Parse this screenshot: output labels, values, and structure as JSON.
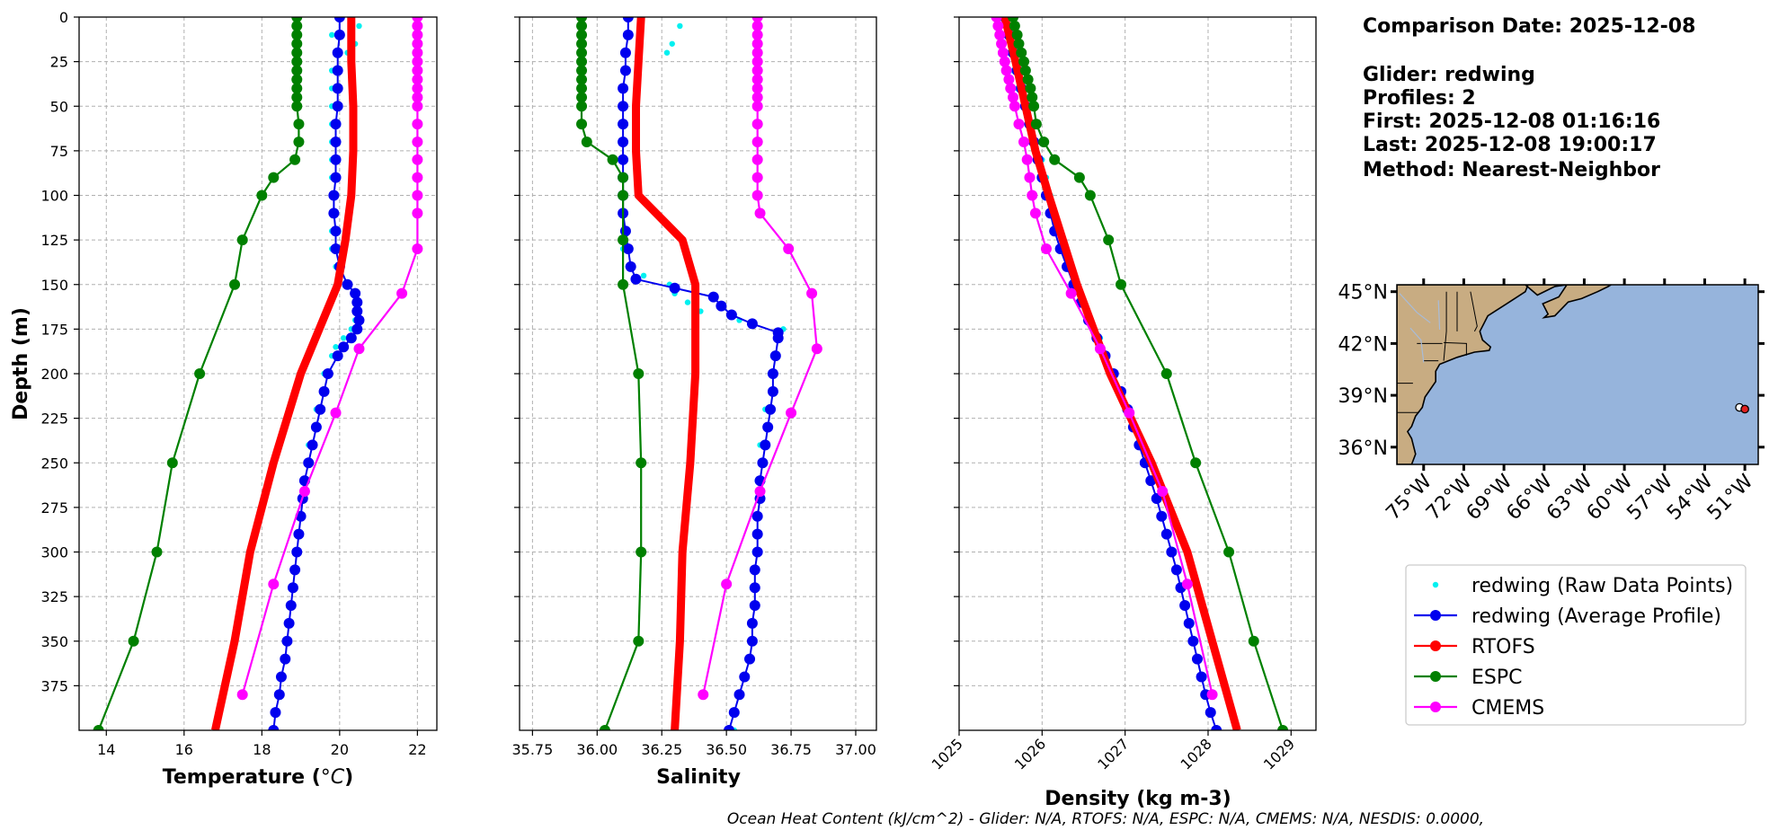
{
  "info": {
    "comparison_date": "Comparison Date: 2025-12-08",
    "glider": "Glider: redwing",
    "profiles": "Profiles: 2",
    "first": "First: 2025-12-08 01:16:16",
    "last": "Last: 2025-12-08 19:00:17",
    "method": "Method: Nearest-Neighbor"
  },
  "footer": "Ocean Heat Content (kJ/cm^2) - Glider: N/A,  RTOFS: N/A,  ESPC: N/A,  CMEMS: N/A,  NESDIS: 0.0000,",
  "colors": {
    "raw": "#00f0f0",
    "avg": "#0000ee",
    "rtofs": "#ff0000",
    "espc": "#008000",
    "cmems": "#ff00ff",
    "land": "#c8ac82",
    "ocean": "#96b4dc",
    "grid": "#b0b0b0"
  },
  "legend": [
    {
      "key": "raw",
      "label": "redwing (Raw Data Points)",
      "style": "dots"
    },
    {
      "key": "avg",
      "label": "redwing (Average Profile)",
      "style": "line-marker"
    },
    {
      "key": "rtofs",
      "label": "RTOFS",
      "style": "line-marker"
    },
    {
      "key": "espc",
      "label": "ESPC",
      "style": "line-marker"
    },
    {
      "key": "cmems",
      "label": "CMEMS",
      "style": "line-marker"
    }
  ],
  "map": {
    "lat_labels": [
      "45°N",
      "42°N",
      "39°N",
      "36°N"
    ],
    "lon_labels": [
      "75°W",
      "72°W",
      "69°W",
      "66°W",
      "63°W",
      "60°W",
      "57°W",
      "54°W",
      "51°W"
    ],
    "lat_values": [
      45,
      42,
      39,
      36
    ],
    "lon_values": [
      -75,
      -72,
      -69,
      -66,
      -63,
      -60,
      -57,
      -54,
      -51
    ],
    "extent": {
      "lon": [
        -77,
        -50
      ],
      "lat": [
        35,
        45.4
      ]
    },
    "glider_points": [
      {
        "lon": -51.4,
        "lat": 38.3
      },
      {
        "lon": -51.0,
        "lat": 38.2
      }
    ]
  },
  "chart_data": [
    {
      "type": "line",
      "xlabel": "Temperature (°C)",
      "ylabel": "Depth (m)",
      "xlim": [
        13.3,
        22.5
      ],
      "ylim": [
        400,
        0
      ],
      "xticks": [
        14,
        16,
        18,
        20,
        22
      ],
      "yticks": [
        0,
        25,
        50,
        75,
        100,
        125,
        150,
        175,
        200,
        225,
        250,
        275,
        300,
        325,
        350,
        375
      ],
      "grid": true,
      "series": [
        {
          "key": "raw",
          "name": "redwing (Raw Data Points)",
          "depth": [
            0,
            5,
            10,
            15,
            20,
            30,
            40,
            50,
            60,
            70,
            80,
            90,
            100,
            110,
            120,
            130,
            140,
            145,
            150,
            155,
            160,
            165,
            170,
            175,
            180,
            185,
            190,
            200,
            220,
            240,
            260,
            280,
            300,
            320,
            340,
            360,
            380,
            400
          ],
          "values": [
            20.3,
            20.5,
            19.8,
            20.4,
            20.2,
            19.8,
            19.8,
            19.8,
            19.8,
            19.8,
            19.8,
            19.8,
            19.8,
            19.8,
            19.8,
            19.8,
            19.9,
            20.0,
            20.2,
            20.4,
            20.5,
            20.5,
            20.4,
            20.3,
            20.1,
            19.9,
            19.8,
            19.6,
            19.4,
            19.2,
            19.1,
            19.0,
            18.9,
            18.8,
            18.7,
            18.6,
            18.5,
            18.3
          ]
        },
        {
          "key": "avg",
          "name": "redwing (Average Profile)",
          "depth": [
            0,
            10,
            20,
            30,
            40,
            50,
            60,
            70,
            80,
            90,
            100,
            110,
            120,
            130,
            140,
            150,
            155,
            160,
            165,
            170,
            175,
            180,
            185,
            190,
            200,
            210,
            220,
            230,
            240,
            250,
            260,
            270,
            280,
            290,
            300,
            310,
            320,
            330,
            340,
            350,
            360,
            370,
            380,
            390,
            400
          ],
          "values": [
            20.0,
            20.0,
            19.95,
            19.95,
            19.95,
            19.95,
            19.9,
            19.9,
            19.9,
            19.9,
            19.85,
            19.85,
            19.9,
            19.9,
            20.0,
            20.2,
            20.4,
            20.45,
            20.45,
            20.5,
            20.45,
            20.3,
            20.1,
            19.95,
            19.7,
            19.6,
            19.5,
            19.4,
            19.3,
            19.2,
            19.1,
            19.05,
            19.0,
            18.95,
            18.9,
            18.85,
            18.8,
            18.75,
            18.7,
            18.65,
            18.6,
            18.5,
            18.45,
            18.35,
            18.3
          ]
        },
        {
          "key": "rtofs",
          "name": "RTOFS",
          "depth": [
            0,
            25,
            50,
            75,
            100,
            125,
            150,
            200,
            250,
            300,
            350,
            400
          ],
          "values": [
            20.3,
            20.3,
            20.35,
            20.35,
            20.3,
            20.15,
            19.95,
            19.0,
            18.3,
            17.7,
            17.3,
            16.8
          ]
        },
        {
          "key": "espc",
          "name": "ESPC",
          "depth": [
            0,
            5,
            10,
            15,
            20,
            25,
            30,
            35,
            40,
            45,
            50,
            60,
            70,
            80,
            90,
            100,
            125,
            150,
            200,
            250,
            300,
            350,
            400
          ],
          "values": [
            18.9,
            18.9,
            18.9,
            18.9,
            18.9,
            18.9,
            18.9,
            18.9,
            18.9,
            18.9,
            18.9,
            18.95,
            18.95,
            18.85,
            18.3,
            18.0,
            17.5,
            17.3,
            16.4,
            15.7,
            15.3,
            14.7,
            13.8
          ]
        },
        {
          "key": "cmems",
          "name": "CMEMS",
          "depth": [
            0,
            5,
            10,
            15,
            20,
            25,
            30,
            35,
            40,
            45,
            50,
            60,
            70,
            80,
            90,
            100,
            110,
            130,
            155,
            186,
            222,
            266,
            318,
            380
          ],
          "values": [
            22.0,
            22.0,
            22.0,
            22.0,
            22.0,
            22.0,
            22.0,
            22.0,
            22.0,
            22.0,
            22.0,
            22.0,
            22.0,
            22.0,
            22.0,
            22.0,
            22.0,
            22.0,
            21.6,
            20.5,
            19.9,
            19.1,
            18.3,
            17.5
          ]
        }
      ]
    },
    {
      "type": "line",
      "xlabel": "Salinity",
      "xlim": [
        35.7,
        37.08
      ],
      "ylim": [
        400,
        0
      ],
      "xticks": [
        35.75,
        36.0,
        36.25,
        36.5,
        36.75,
        37.0
      ],
      "grid": true,
      "series": [
        {
          "key": "raw",
          "name": "redwing (Raw Data Points)",
          "depth": [
            0,
            5,
            10,
            15,
            20,
            30,
            40,
            50,
            60,
            70,
            80,
            90,
            100,
            110,
            120,
            130,
            140,
            145,
            150,
            155,
            160,
            165,
            170,
            175,
            180,
            190,
            200,
            220,
            240,
            260,
            280,
            300,
            320,
            340,
            360,
            380,
            400
          ],
          "values": [
            36.12,
            36.32,
            36.12,
            36.29,
            36.27,
            36.1,
            36.1,
            36.1,
            36.09,
            36.09,
            36.09,
            36.09,
            36.09,
            36.1,
            36.1,
            36.1,
            36.12,
            36.18,
            36.28,
            36.3,
            36.35,
            36.4,
            36.55,
            36.72,
            36.7,
            36.68,
            36.67,
            36.65,
            36.63,
            36.62,
            36.61,
            36.61,
            36.6,
            36.6,
            36.58,
            36.55,
            36.53
          ]
        },
        {
          "key": "avg",
          "name": "redwing (Average Profile)",
          "depth": [
            0,
            10,
            20,
            30,
            40,
            50,
            60,
            70,
            80,
            90,
            100,
            110,
            120,
            130,
            140,
            147,
            152,
            157,
            162,
            167,
            172,
            177,
            180,
            190,
            200,
            210,
            220,
            230,
            240,
            250,
            260,
            270,
            280,
            290,
            300,
            310,
            320,
            330,
            340,
            350,
            360,
            370,
            380,
            390,
            400
          ],
          "values": [
            36.12,
            36.12,
            36.11,
            36.11,
            36.1,
            36.1,
            36.1,
            36.1,
            36.1,
            36.1,
            36.1,
            36.1,
            36.11,
            36.12,
            36.13,
            36.15,
            36.3,
            36.45,
            36.48,
            36.52,
            36.6,
            36.7,
            36.7,
            36.69,
            36.68,
            36.68,
            36.67,
            36.66,
            36.65,
            36.64,
            36.63,
            36.63,
            36.62,
            36.62,
            36.62,
            36.61,
            36.61,
            36.61,
            36.6,
            36.6,
            36.59,
            36.57,
            36.55,
            36.53,
            36.51
          ]
        },
        {
          "key": "rtofs",
          "name": "RTOFS",
          "depth": [
            0,
            25,
            50,
            75,
            100,
            125,
            150,
            175,
            200,
            250,
            300,
            350,
            400
          ],
          "values": [
            36.17,
            36.16,
            36.15,
            36.15,
            36.16,
            36.33,
            36.38,
            36.38,
            36.38,
            36.36,
            36.33,
            36.32,
            36.3
          ]
        },
        {
          "key": "espc",
          "name": "ESPC",
          "depth": [
            0,
            5,
            10,
            15,
            20,
            25,
            30,
            35,
            40,
            45,
            50,
            60,
            70,
            80,
            90,
            100,
            125,
            150,
            200,
            250,
            300,
            350,
            400
          ],
          "values": [
            35.94,
            35.94,
            35.94,
            35.94,
            35.94,
            35.94,
            35.94,
            35.94,
            35.94,
            35.94,
            35.94,
            35.94,
            35.96,
            36.06,
            36.1,
            36.1,
            36.1,
            36.1,
            36.16,
            36.17,
            36.17,
            36.16,
            36.03
          ]
        },
        {
          "key": "cmems",
          "name": "CMEMS",
          "depth": [
            0,
            5,
            10,
            15,
            20,
            25,
            30,
            35,
            40,
            45,
            50,
            60,
            70,
            80,
            90,
            100,
            110,
            130,
            155,
            186,
            222,
            266,
            318,
            380
          ],
          "values": [
            36.62,
            36.62,
            36.62,
            36.62,
            36.62,
            36.62,
            36.62,
            36.62,
            36.62,
            36.62,
            36.62,
            36.62,
            36.62,
            36.62,
            36.62,
            36.62,
            36.63,
            36.74,
            36.83,
            36.85,
            36.75,
            36.63,
            36.5,
            36.41
          ]
        }
      ]
    },
    {
      "type": "line",
      "xlabel": "Density (kg m-3)",
      "xlim": [
        1025,
        1029.3
      ],
      "ylim": [
        400,
        0
      ],
      "xticks": [
        1025,
        1026,
        1027,
        1028,
        1029
      ],
      "grid": true,
      "series": [
        {
          "key": "raw",
          "name": "redwing (Raw Data Points)",
          "depth": [
            0,
            10,
            20,
            30,
            40,
            50,
            60,
            70,
            80,
            90,
            100,
            120,
            140,
            160,
            180,
            200,
            220,
            240,
            260,
            280,
            300,
            320,
            340,
            360,
            380,
            400
          ],
          "values": [
            1025.5,
            1025.55,
            1025.6,
            1025.65,
            1025.7,
            1025.78,
            1025.85,
            1025.92,
            1026.0,
            1026.05,
            1026.1,
            1026.22,
            1026.35,
            1026.5,
            1026.7,
            1026.85,
            1027.0,
            1027.15,
            1027.3,
            1027.42,
            1027.55,
            1027.65,
            1027.75,
            1027.85,
            1027.95,
            1028.1
          ]
        },
        {
          "key": "avg",
          "name": "redwing (Average Profile)",
          "depth": [
            0,
            10,
            20,
            30,
            40,
            50,
            60,
            70,
            80,
            90,
            100,
            110,
            120,
            130,
            140,
            150,
            160,
            170,
            180,
            190,
            200,
            210,
            220,
            230,
            240,
            250,
            260,
            270,
            280,
            290,
            300,
            310,
            320,
            330,
            340,
            350,
            360,
            370,
            380,
            390,
            400
          ],
          "values": [
            1025.55,
            1025.6,
            1025.65,
            1025.7,
            1025.75,
            1025.8,
            1025.85,
            1025.9,
            1025.95,
            1026.0,
            1026.05,
            1026.1,
            1026.15,
            1026.22,
            1026.3,
            1026.38,
            1026.47,
            1026.56,
            1026.66,
            1026.76,
            1026.86,
            1026.95,
            1027.03,
            1027.1,
            1027.17,
            1027.24,
            1027.31,
            1027.38,
            1027.44,
            1027.5,
            1027.56,
            1027.62,
            1027.67,
            1027.72,
            1027.77,
            1027.82,
            1027.87,
            1027.92,
            1027.97,
            1028.03,
            1028.1
          ]
        },
        {
          "key": "rtofs",
          "name": "RTOFS",
          "depth": [
            0,
            25,
            50,
            75,
            100,
            125,
            150,
            200,
            250,
            300,
            350,
            400
          ],
          "values": [
            1025.55,
            1025.68,
            1025.8,
            1025.92,
            1026.08,
            1026.25,
            1026.42,
            1026.82,
            1027.32,
            1027.75,
            1028.05,
            1028.35
          ]
        },
        {
          "key": "espc",
          "name": "ESPC",
          "depth": [
            0,
            5,
            10,
            15,
            20,
            25,
            30,
            35,
            40,
            45,
            50,
            60,
            70,
            80,
            90,
            100,
            125,
            150,
            200,
            250,
            300,
            350,
            400
          ],
          "values": [
            1025.65,
            1025.67,
            1025.7,
            1025.72,
            1025.75,
            1025.78,
            1025.8,
            1025.83,
            1025.86,
            1025.88,
            1025.9,
            1025.93,
            1026.02,
            1026.15,
            1026.45,
            1026.58,
            1026.8,
            1026.95,
            1027.5,
            1027.85,
            1028.25,
            1028.55,
            1028.9
          ]
        },
        {
          "key": "cmems",
          "name": "CMEMS",
          "depth": [
            0,
            5,
            10,
            15,
            20,
            25,
            30,
            35,
            40,
            45,
            50,
            60,
            70,
            80,
            90,
            100,
            110,
            130,
            155,
            186,
            222,
            266,
            318,
            380
          ],
          "values": [
            1025.45,
            1025.47,
            1025.49,
            1025.51,
            1025.53,
            1025.55,
            1025.57,
            1025.6,
            1025.62,
            1025.65,
            1025.67,
            1025.72,
            1025.78,
            1025.82,
            1025.85,
            1025.88,
            1025.92,
            1026.05,
            1026.35,
            1026.7,
            1027.05,
            1027.45,
            1027.75,
            1028.05
          ]
        }
      ]
    }
  ]
}
